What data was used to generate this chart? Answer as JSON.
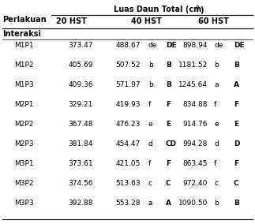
{
  "title_text": "Luas Daun Total (cm",
  "title_sup": "2",
  "title_end": ")",
  "perlakuan_label": "Perlakuan",
  "subheaders": [
    "20 HST",
    "40 HST",
    "60 HST"
  ],
  "section_header": "Interaksi",
  "rows": [
    {
      "label": "M1P1",
      "v20": "373.47",
      "v40": "488.67",
      "s40l": "de",
      "s40u": "DE",
      "v60": "898.94",
      "s60l": "de",
      "s60u": "DE"
    },
    {
      "label": "M1P2",
      "v20": "405.69",
      "v40": "507.52",
      "s40l": "b",
      "s40u": "B",
      "v60": "1181.52",
      "s60l": "b",
      "s60u": "B"
    },
    {
      "label": "M1P3",
      "v20": "409.36",
      "v40": "571.97",
      "s40l": "b",
      "s40u": "B",
      "v60": "1245.64",
      "s60l": "a",
      "s60u": "A"
    },
    {
      "label": "M2P1",
      "v20": "329.21",
      "v40": "419.93",
      "s40l": "f",
      "s40u": "F",
      "v60": "834.88",
      "s60l": "f",
      "s60u": "F"
    },
    {
      "label": "M2P2",
      "v20": "367.48",
      "v40": "476.23",
      "s40l": "e",
      "s40u": "E",
      "v60": "914.76",
      "s60l": "e",
      "s60u": "E"
    },
    {
      "label": "M2P3",
      "v20": "381.84",
      "v40": "454.47",
      "s40l": "d",
      "s40u": "CD",
      "v60": "994.28",
      "s60l": "d",
      "s60u": "D"
    },
    {
      "label": "M3P1",
      "v20": "373.61",
      "v40": "421.05",
      "s40l": "f",
      "s40u": "F",
      "v60": "863.45",
      "s60l": "f",
      "s60u": "F"
    },
    {
      "label": "M3P2",
      "v20": "374.56",
      "v40": "513.63",
      "s40l": "c",
      "s40u": "C",
      "v60": "972.40",
      "s60l": "c",
      "s60u": "C"
    },
    {
      "label": "M3P3",
      "v20": "392.88",
      "v40": "553.28",
      "s40l": "a",
      "s40u": "A",
      "v60": "1090.50",
      "s60l": "b",
      "s60u": "B"
    }
  ],
  "bg_color": "#ffffff",
  "text_color": "#000000",
  "fs": 6.5,
  "hfs": 7.0
}
